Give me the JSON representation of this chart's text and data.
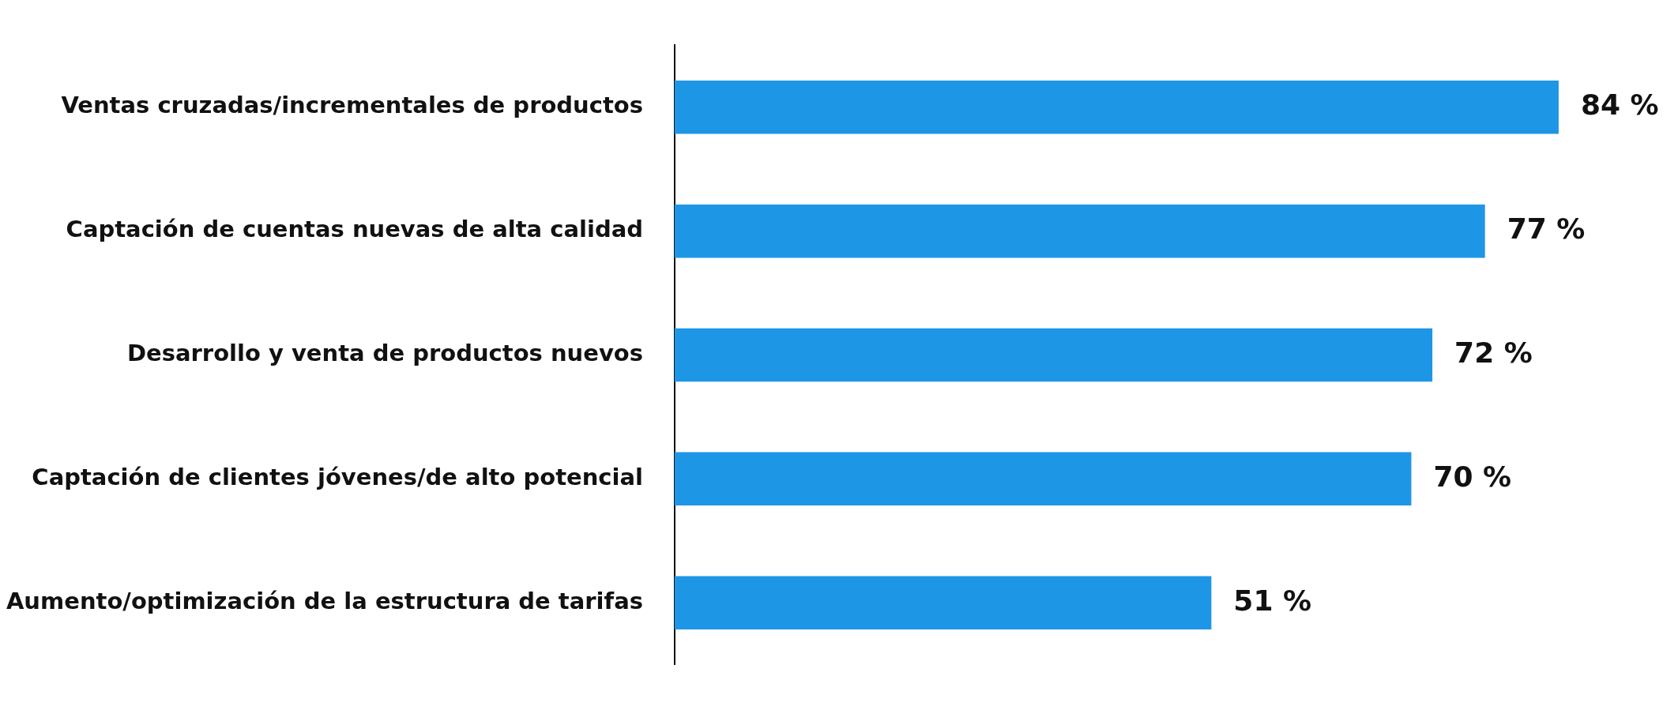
{
  "chart_data": {
    "type": "bar",
    "orientation": "horizontal",
    "categories": [
      "Ventas cruzadas/incrementales de productos",
      "Captación de cuentas nuevas de alta calidad",
      "Desarrollo y venta de productos nuevos",
      "Captación de clientes jóvenes/de alto potencial",
      "Aumento/optimización de la estructura de tarifas"
    ],
    "values": [
      84,
      77,
      72,
      70,
      51
    ],
    "value_labels": [
      "84 %",
      "77 %",
      "72 %",
      "70 %",
      "51 %"
    ],
    "color": "#1e96e6",
    "tick_labels": "y"
  }
}
